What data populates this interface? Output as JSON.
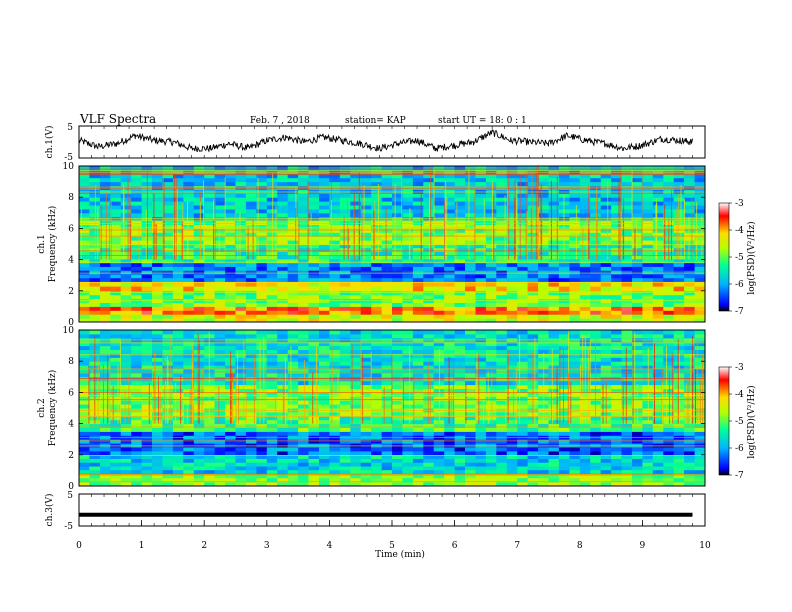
{
  "header": {
    "title": "VLF Spectra",
    "date": "Feb. 7 , 2018",
    "station": "station= KAP",
    "start": "start UT =  18: 0  : 1"
  },
  "chart_data": [
    {
      "type": "line",
      "panel": "ch1-waveform",
      "ylabel": "ch.1(V)",
      "ylim": [
        -5,
        5
      ],
      "yticks": [
        "5",
        "-5"
      ],
      "xlim": [
        0,
        10
      ],
      "series": [
        {
          "x": [
            0,
            0.3,
            0.6,
            0.9,
            1.2,
            1.5,
            1.8,
            2.1,
            2.4,
            2.7,
            3.0,
            3.3,
            3.6,
            3.9,
            4.2,
            4.5,
            4.8,
            5.1,
            5.4,
            5.7,
            6.0,
            6.3,
            6.6,
            6.9,
            7.2,
            7.5,
            7.8,
            8.1,
            8.4,
            8.7,
            9.0,
            9.3,
            9.6,
            9.8
          ],
          "y": [
            0.5,
            -1.5,
            -0.5,
            2.0,
            0.5,
            0,
            -2.0,
            -2.0,
            -0.5,
            -2.0,
            0.5,
            1.5,
            0,
            1.5,
            0.5,
            -0.5,
            -2.0,
            -0.5,
            0.5,
            -2.0,
            -1.0,
            0,
            3.0,
            0.5,
            0,
            -0.5,
            2.0,
            0.5,
            -0.5,
            -2.0,
            -1.0,
            1.0,
            0.5,
            0
          ]
        }
      ]
    },
    {
      "type": "heatmap",
      "panel": "ch1-spectrogram",
      "title": "ch.1",
      "ylabel": "Frequency (kHz)",
      "ylim": [
        0,
        10
      ],
      "yticks": [
        "0",
        "2",
        "4",
        "6",
        "8",
        "10"
      ],
      "xlim": [
        0,
        10
      ],
      "colorbar": {
        "label": "log(PSD)(V²/Hz)",
        "ticks": [
          "-3",
          "-4",
          "-5",
          "-6",
          "-7"
        ],
        "range": [
          -7,
          -3
        ]
      },
      "bands": [
        {
          "f0": 0,
          "f1": 0.5,
          "level": -4.5
        },
        {
          "f0": 0.5,
          "f1": 1.0,
          "level": -3.8
        },
        {
          "f0": 1.0,
          "f1": 2.0,
          "level": -4.9
        },
        {
          "f0": 2.0,
          "f1": 2.6,
          "level": -4.3
        },
        {
          "f0": 2.6,
          "f1": 3.8,
          "level": -6.2
        },
        {
          "f0": 3.8,
          "f1": 5.0,
          "level": -5.3
        },
        {
          "f0": 5.0,
          "f1": 6.5,
          "level": -4.9
        },
        {
          "f0": 6.5,
          "f1": 10.0,
          "level": -5.8
        }
      ]
    },
    {
      "type": "heatmap",
      "panel": "ch2-spectrogram",
      "title": "ch.2",
      "ylabel": "Frequency (kHz)",
      "ylim": [
        0,
        10
      ],
      "yticks": [
        "0",
        "2",
        "4",
        "6",
        "8",
        "10"
      ],
      "xlim": [
        0,
        10
      ],
      "colorbar": {
        "label": "log(PSD)(V²/Hz)",
        "ticks": [
          "-3",
          "-4",
          "-5",
          "-6",
          "-7"
        ],
        "range": [
          -7,
          -3
        ]
      },
      "bands": [
        {
          "f0": 0,
          "f1": 0.8,
          "level": -4.8
        },
        {
          "f0": 0.8,
          "f1": 2.0,
          "level": -5.7
        },
        {
          "f0": 2.0,
          "f1": 3.5,
          "level": -6.3
        },
        {
          "f0": 3.5,
          "f1": 4.5,
          "level": -5.2
        },
        {
          "f0": 4.5,
          "f1": 6.5,
          "level": -4.9
        },
        {
          "f0": 6.5,
          "f1": 10.0,
          "level": -5.6
        }
      ]
    },
    {
      "type": "line",
      "panel": "ch3-waveform",
      "ylabel": "ch.3(V)",
      "ylim": [
        -5,
        5
      ],
      "yticks": [
        "5",
        "-5"
      ],
      "xlim": [
        0,
        10
      ],
      "xlabel": "Time (min)",
      "xticks": [
        "0",
        "1",
        "2",
        "3",
        "4",
        "5",
        "6",
        "7",
        "8",
        "9",
        "10"
      ],
      "series": [
        {
          "x": [
            0,
            9.8
          ],
          "y": [
            -1.5,
            -1.5
          ]
        }
      ]
    }
  ]
}
